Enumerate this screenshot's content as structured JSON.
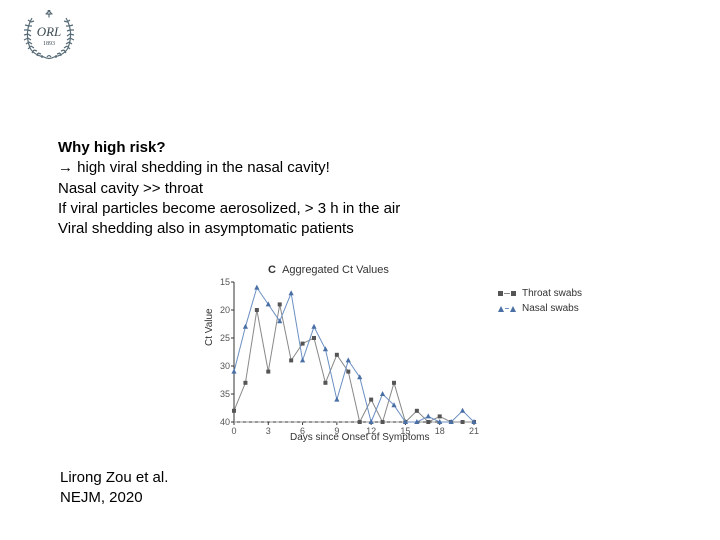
{
  "logo": {
    "text": "ORL",
    "year": "1893",
    "wreath_color": "#576b76",
    "crown_color": "#576b76",
    "text_color": "#3b4a52"
  },
  "text_block": {
    "heading": "Why high risk?",
    "line1": "→ high viral shedding in the nasal cavity!",
    "line2": "Nasal cavity >> throat",
    "line3": "If viral particles become aerosolized, > 3 h in the air",
    "line4": "Viral shedding also in asymptomatic patients"
  },
  "citation": {
    "line1": "Lirong Zou et al.",
    "line2": "NEJM, 2020"
  },
  "chart": {
    "panel_label": "C",
    "panel_title": "Aggregated Ct Values",
    "y_label": "Ct Value",
    "x_label": "Days since Onset of Symptoms",
    "y_min": 15,
    "y_max": 40,
    "y_ticks": [
      15,
      20,
      25,
      30,
      35,
      40
    ],
    "x_min": 0,
    "x_max": 21,
    "x_ticks": [
      0,
      3,
      6,
      9,
      12,
      15,
      18,
      21
    ],
    "detection_limit": 40,
    "detection_limit_style": "dashed",
    "detection_limit_color": "#999999",
    "series": [
      {
        "name": "Throat swabs",
        "marker": "square",
        "color": "#555555",
        "line_color": "#888888",
        "points": [
          [
            0,
            38
          ],
          [
            1,
            33
          ],
          [
            2,
            20
          ],
          [
            3,
            31
          ],
          [
            4,
            19
          ],
          [
            5,
            29
          ],
          [
            6,
            26
          ],
          [
            7,
            25
          ],
          [
            8,
            33
          ],
          [
            9,
            28
          ],
          [
            10,
            31
          ],
          [
            11,
            40
          ],
          [
            12,
            36
          ],
          [
            13,
            40
          ],
          [
            14,
            33
          ],
          [
            15,
            40
          ],
          [
            16,
            38
          ],
          [
            17,
            40
          ],
          [
            18,
            39
          ],
          [
            19,
            40
          ],
          [
            20,
            40
          ],
          [
            21,
            40
          ]
        ]
      },
      {
        "name": "Nasal swabs",
        "marker": "triangle",
        "color": "#4a6fa5",
        "line_color": "#6b8fc2",
        "points": [
          [
            0,
            31
          ],
          [
            1,
            23
          ],
          [
            2,
            16
          ],
          [
            3,
            19
          ],
          [
            4,
            22
          ],
          [
            5,
            17
          ],
          [
            6,
            29
          ],
          [
            7,
            23
          ],
          [
            8,
            27
          ],
          [
            9,
            36
          ],
          [
            10,
            29
          ],
          [
            11,
            32
          ],
          [
            12,
            40
          ],
          [
            13,
            35
          ],
          [
            14,
            37
          ],
          [
            15,
            40
          ],
          [
            16,
            40
          ],
          [
            17,
            39
          ],
          [
            18,
            40
          ],
          [
            19,
            40
          ],
          [
            20,
            38
          ],
          [
            21,
            40
          ]
        ]
      }
    ],
    "legend": {
      "items": [
        {
          "label": "Throat swabs"
        },
        {
          "label": "Nasal swabs"
        }
      ]
    },
    "background_color": "#ffffff",
    "axis_color": "#333333",
    "tick_fontsize": 9,
    "label_fontsize": 10,
    "title_fontsize": 11
  }
}
